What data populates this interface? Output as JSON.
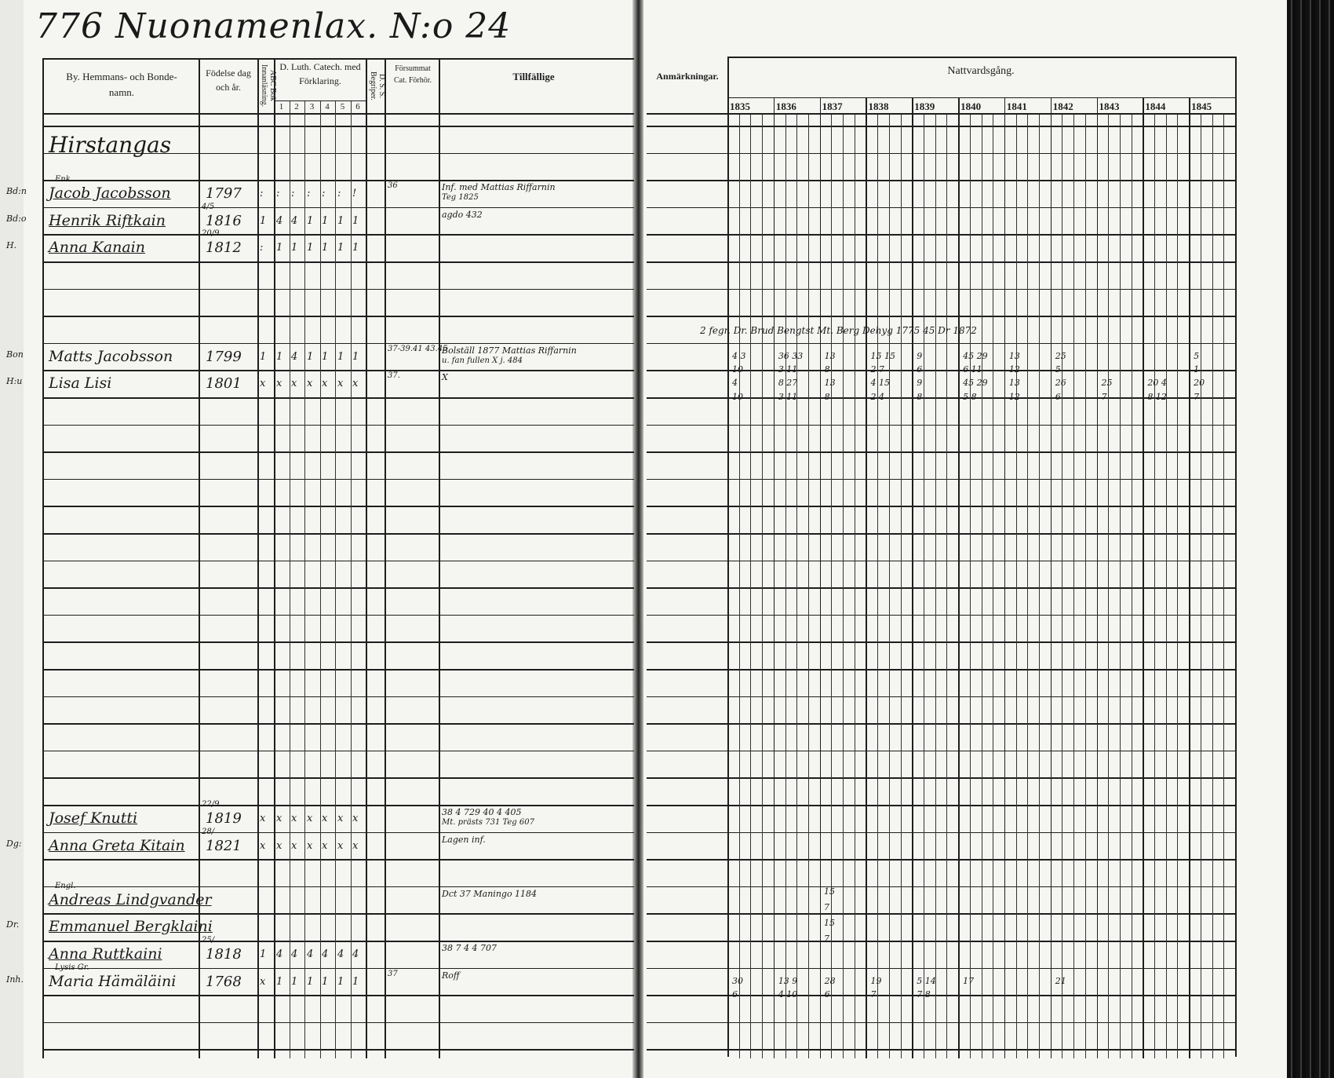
{
  "title": "776 Nuonamenlax. N:o 24",
  "headers": {
    "name": "By. Hemmans- och Bonde-namn.",
    "birth": "Födelse dag och år.",
    "abc": "ABC Bok Innanläsning.",
    "catech": "D. Luth. Catech. med Förklaring.",
    "catech_cols": [
      "1",
      "2",
      "3",
      "4",
      "5",
      "6"
    ],
    "dss": "D. S. S. Begriper.",
    "missed": "Försummat Cat. Förhör.",
    "occasional": "Tillfällige",
    "remarks": "Anmärkningar.",
    "communion": "Nattvardsgång."
  },
  "years": [
    "1835",
    "1836",
    "1837",
    "1838",
    "1839",
    "1840",
    "1841",
    "1842",
    "1843",
    "1844",
    "1845"
  ],
  "village": "Hirstangas",
  "rows": [
    {
      "row": 2,
      "prefix": "Bd:n",
      "name": "Jacob Jacobsson",
      "note": "Enk.",
      "birth": "1797",
      "marks": [
        ":",
        ":",
        ":",
        ":",
        ":",
        ":",
        "!"
      ],
      "missed": "36",
      "occasional": "Inf. med Mattias Riffarnin",
      "occasional2": "Teg 1825",
      "struck": true
    },
    {
      "row": 3,
      "prefix": "Bd:o",
      "name": "Henrik Riftkain",
      "birth": "1816",
      "birth_day": "4/5",
      "marks": [
        "1",
        "4",
        "4",
        "1",
        "1",
        "1",
        "1"
      ],
      "occasional": "agdo 432",
      "struck": true
    },
    {
      "row": 4,
      "prefix": "H.",
      "name": "Anna Kanain",
      "birth": "1812",
      "birth_day": "20/9",
      "marks": [
        ":",
        "1",
        "1",
        "1",
        "1",
        "1",
        "1"
      ],
      "struck": true
    },
    {
      "row": 8,
      "prefix": "Bon",
      "name": "Matts Jacobsson",
      "birth": "1799",
      "marks": [
        "1",
        "1",
        "4",
        "1",
        "1",
        "1",
        "1"
      ],
      "missed": "37-39.41 43.45",
      "occasional": "Bolställ 1877 Mattias Riffarnin",
      "occasional2": "u. fan fullen  X j. 484"
    },
    {
      "row": 9,
      "prefix": "H:u",
      "name": "Lisa Lisi",
      "birth": "1801",
      "marks": [
        "x",
        "x",
        "x",
        "x",
        "x",
        "x",
        "x"
      ],
      "missed": "37.",
      "occasional": "X"
    },
    {
      "row": 25,
      "name": "Josef Knutti",
      "birth": "1819",
      "birth_day": "22/9",
      "marks": [
        "x",
        "x",
        "x",
        "x",
        "x",
        "x",
        "x"
      ],
      "occasional": "38 4 729 40 4 405",
      "occasional2": "Mt. prästs 731 Teg 607",
      "struck": true
    },
    {
      "row": 26,
      "prefix": "Dg:",
      "name": "Anna Greta Kitain",
      "birth": "1821",
      "birth_day": "28/",
      "marks": [
        "x",
        "x",
        "x",
        "x",
        "x",
        "x",
        "x"
      ],
      "occasional": "Lagen inf.",
      "struck": true
    },
    {
      "row": 28,
      "name": "Andreas Lindgvander",
      "note": "Engl.",
      "occasional": "Dct 37 Maningo 1184",
      "struck": true
    },
    {
      "row": 29,
      "prefix": "Dr.",
      "name": "Emmanuel Bergklaini",
      "struck": true
    },
    {
      "row": 30,
      "name": "Anna Ruttkaini",
      "birth": "1818",
      "birth_day": "25/",
      "marks": [
        "1",
        "4",
        "4",
        "4",
        "4",
        "4",
        "4"
      ],
      "occasional": "38 7 4 4 707",
      "struck": true
    },
    {
      "row": 31,
      "prefix": "Inh.",
      "name": "Maria Hämäläini",
      "note": "Lysis Gr.",
      "birth": "1768",
      "marks": [
        "x",
        "1",
        "1",
        "1",
        "1",
        "1",
        "1"
      ],
      "missed": "37",
      "occasional": "Roff"
    }
  ],
  "communion_entries": [
    {
      "row": 7,
      "text": "2 fegr. Dr. Brud Bengtst Mt. Berg Dehyg 1775 45 Dr 1872"
    },
    {
      "row": 8,
      "values": [
        "4 3",
        "36 33",
        "13",
        "15 15",
        "9",
        "45 29",
        "13",
        "25",
        "",
        "",
        "5"
      ]
    },
    {
      "row": 8.5,
      "values": [
        "10",
        "3 11",
        "8",
        "2 7",
        "6",
        "6 11",
        "12",
        "5",
        "",
        "",
        "1"
      ]
    },
    {
      "row": 9,
      "values": [
        "4",
        "8 27",
        "13",
        "4 15",
        "9",
        "45 29",
        "13",
        "26",
        "25",
        "20 4",
        "20"
      ]
    },
    {
      "row": 9.5,
      "values": [
        "10",
        "3 11",
        "8",
        "2 4",
        "8",
        "5 8",
        "12",
        "6",
        "7",
        "8 12",
        "7"
      ]
    },
    {
      "row": 31,
      "values": [
        "30",
        "13 9",
        "28",
        "19",
        "5 14",
        "17",
        "",
        "21",
        "",
        "",
        ""
      ]
    },
    {
      "row": 31.5,
      "values": [
        "6",
        "4 10",
        "6",
        "7",
        "7 8",
        "",
        "",
        "",
        "",
        "",
        ""
      ]
    }
  ],
  "remarks_col_marks": [
    "15",
    "7",
    "15",
    "7"
  ]
}
